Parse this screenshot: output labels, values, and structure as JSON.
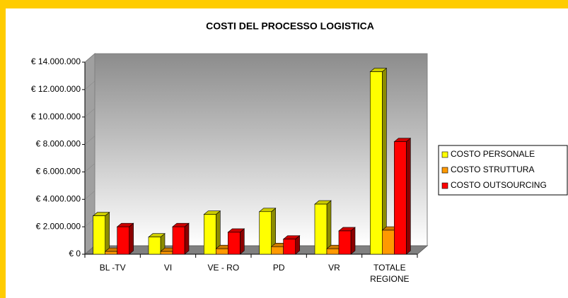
{
  "chart_data": {
    "type": "bar3d",
    "title": "COSTI DEL PROCESSO LOGISTICA",
    "categories": [
      "BL -TV",
      "VI",
      "VE - RO",
      "PD",
      "VR",
      "TOTALE REGIONE"
    ],
    "series": [
      {
        "name": "COSTO PERSONALE",
        "color": "#ffff00",
        "values": [
          2800000,
          1250000,
          2900000,
          3100000,
          3650000,
          13300000
        ]
      },
      {
        "name": "COSTO STRUTTURA",
        "color": "#ff9900",
        "values": [
          200000,
          200000,
          400000,
          550000,
          400000,
          1750000
        ]
      },
      {
        "name": "COSTO OUTSOURCING",
        "color": "#ff0000",
        "values": [
          2000000,
          2000000,
          1600000,
          1100000,
          1700000,
          8200000
        ]
      }
    ],
    "ylim": [
      0,
      14000000
    ],
    "yticks": [
      {
        "value": 0,
        "label": "€ 0"
      },
      {
        "value": 2000000,
        "label": "€ 2.000.000"
      },
      {
        "value": 4000000,
        "label": "€ 4.000.000"
      },
      {
        "value": 6000000,
        "label": "€ 6.000.000"
      },
      {
        "value": 8000000,
        "label": "€ 8.000.000"
      },
      {
        "value": 10000000,
        "label": "€ 10.000.000"
      },
      {
        "value": 12000000,
        "label": "€ 12.000.000"
      },
      {
        "value": 14000000,
        "label": "€ 14.000.000"
      }
    ],
    "legend": "right"
  }
}
